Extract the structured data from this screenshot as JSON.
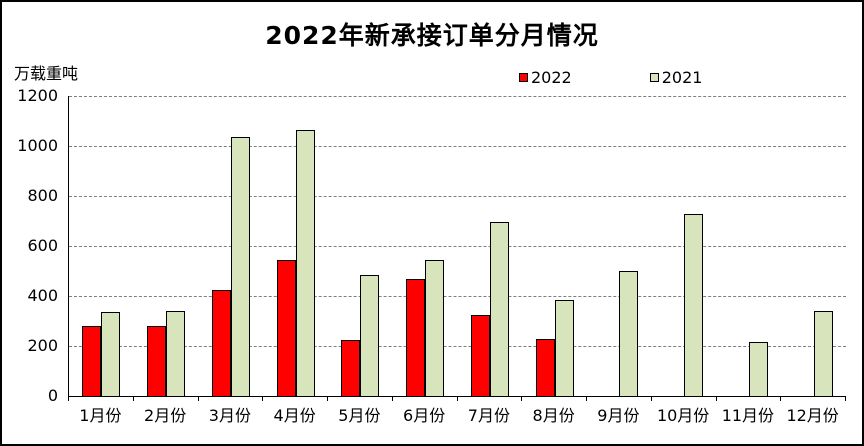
{
  "chart_data": {
    "type": "bar",
    "title": "2022年新承接订单分月情况",
    "unit_label": "万载重吨",
    "categories": [
      "1月份",
      "2月份",
      "3月份",
      "4月份",
      "5月份",
      "6月份",
      "7月份",
      "8月份",
      "9月份",
      "10月份",
      "11月份",
      "12月份"
    ],
    "series": [
      {
        "name": "2022",
        "color": "#ff0000",
        "values": [
          280,
          280,
          425,
          545,
          225,
          470,
          325,
          230,
          null,
          null,
          null,
          null
        ]
      },
      {
        "name": "2021",
        "color": "#d7e4bc",
        "values": [
          335,
          340,
          1035,
          1065,
          485,
          545,
          695,
          385,
          500,
          730,
          215,
          340
        ]
      }
    ],
    "ylim": [
      0,
      1200
    ],
    "yticks": [
      0,
      200,
      400,
      600,
      800,
      1000,
      1200
    ],
    "grid": "horizontal-dashed",
    "legend_position": "top",
    "bar_border_color": "#000000",
    "gridline_color": "#7f7f7f"
  }
}
